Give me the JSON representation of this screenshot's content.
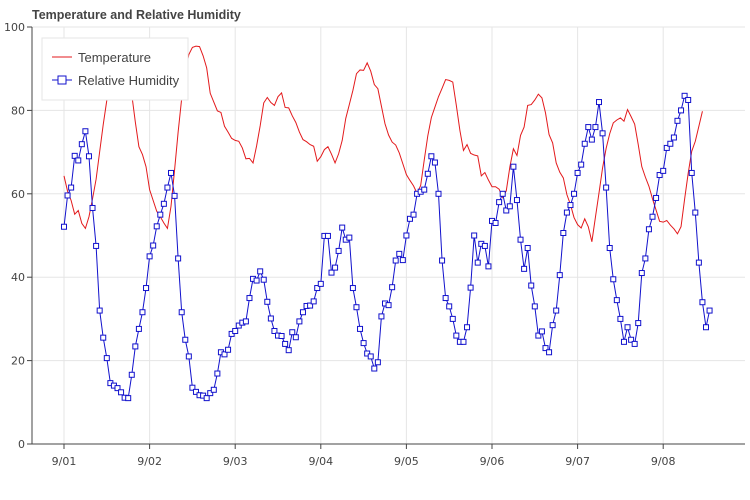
{
  "chart_data": {
    "type": "line",
    "title": "Temperature and Relative Humidity",
    "xlabel": "",
    "ylabel": "",
    "ylim": [
      0,
      100
    ],
    "yticks": [
      0,
      20,
      40,
      60,
      80,
      100
    ],
    "xlim": [
      "2025-09-01 00:00",
      "2025-09-08 23:00"
    ],
    "xticks": [
      "9/01",
      "9/02",
      "9/03",
      "9/04",
      "9/05",
      "9/06",
      "9/07",
      "9/08"
    ],
    "grid": true,
    "legend_position": "top-left",
    "x_start": "9/01 00:00",
    "x_step_hours": 1,
    "series": [
      {
        "name": "Temperature",
        "color": "#e31a1c",
        "marker": "none",
        "values": [
          64.3,
          60.6,
          58.4,
          55.1,
          56.0,
          52.9,
          51.7,
          54.5,
          58.8,
          63.5,
          70.1,
          76.6,
          82.4,
          87.0,
          89.8,
          91.2,
          91.3,
          90.5,
          88.3,
          83.8,
          77.2,
          71.3,
          69.4,
          66.5,
          61.0,
          58.4,
          55.8,
          54.5,
          53.0,
          51.7,
          57.0,
          65.7,
          74.8,
          82.9,
          89.1,
          93.4,
          95.1,
          95.4,
          95.3,
          93.1,
          90.2,
          84.1,
          82.0,
          79.9,
          79.5,
          76.2,
          74.8,
          73.3,
          72.8,
          72.6,
          71.0,
          68.4,
          68.5,
          67.4,
          71.5,
          76.3,
          81.8,
          83.1,
          81.9,
          81.2,
          83.3,
          84.2,
          80.7,
          80.6,
          78.7,
          77.1,
          74.8,
          73.0,
          72.5,
          71.8,
          71.4,
          67.8,
          68.9,
          70.6,
          71.3,
          69.5,
          67.4,
          69.6,
          72.8,
          78.1,
          81.4,
          84.8,
          88.8,
          89.7,
          89.6,
          91.4,
          89.4,
          86.2,
          85.2,
          81.0,
          76.8,
          74.1,
          72.4,
          71.7,
          69.8,
          67.2,
          64.6,
          63.2,
          61.9,
          60.1,
          62.0,
          68.1,
          73.9,
          78.3,
          80.8,
          83.3,
          85.3,
          87.4,
          87.2,
          86.8,
          81.2,
          75.2,
          70.4,
          71.8,
          69.7,
          69.3,
          69.1,
          64.3,
          65.1,
          63.3,
          61.7,
          61.7,
          61.1,
          59.1,
          60.7,
          66.4,
          70.8,
          69.2,
          74.0,
          76.0,
          81.2,
          81.4,
          82.5,
          83.9,
          83.0,
          79.4,
          74.2,
          72.2,
          67.4,
          65.2,
          63.8,
          59.8,
          57.4,
          54.3,
          52.6,
          51.8,
          54.0,
          52.1,
          48.5,
          54.4,
          60.2,
          66.2,
          70.9,
          74.4,
          77.0,
          77.7,
          78.2,
          77.4,
          80.2,
          78.5,
          76.7,
          71.8,
          66.5,
          64.0,
          61.8,
          58.8,
          56.1,
          53.4,
          53.2,
          53.6,
          52.5,
          51.6,
          50.4,
          52.1,
          58.7,
          64.9,
          70.2,
          72.6,
          76.2,
          79.8
        ]
      },
      {
        "name": "Relative Humidity",
        "color": "#1111cc",
        "marker": "square",
        "values": [
          52.1,
          59.6,
          61.5,
          69.1,
          68.0,
          71.9,
          75.0,
          69.0,
          56.6,
          47.5,
          32.0,
          25.5,
          20.6,
          14.6,
          14.0,
          13.4,
          12.4,
          11.1,
          11.0,
          16.6,
          23.4,
          27.6,
          31.6,
          37.4,
          45.0,
          47.6,
          52.2,
          55.0,
          57.6,
          61.5,
          65.0,
          59.5,
          44.5,
          31.6,
          25.0,
          21.0,
          13.5,
          12.5,
          11.7,
          11.6,
          11.0,
          12.2,
          13.0,
          16.9,
          22.0,
          21.5,
          22.6,
          26.4,
          27.1,
          28.4,
          29.1,
          29.4,
          35.0,
          39.6,
          39.2,
          41.4,
          39.4,
          34.1,
          30.1,
          27.1,
          26.0,
          25.9,
          24.0,
          22.5,
          26.8,
          25.6,
          29.4,
          31.6,
          33.1,
          33.2,
          34.2,
          37.4,
          38.4,
          49.9,
          49.9,
          41.1,
          42.3,
          46.3,
          51.9,
          49.0,
          49.5,
          37.4,
          32.8,
          27.6,
          24.2,
          21.7,
          21.0,
          18.1,
          19.6,
          30.6,
          33.7,
          33.3,
          37.6,
          44.0,
          45.6,
          44.1,
          50.0,
          54.0,
          55.0,
          60.0,
          60.5,
          61.0,
          64.8,
          69.0,
          67.5,
          60.0,
          44.0,
          35.0,
          33.0,
          30.0,
          26.0,
          24.5,
          24.5,
          28.0,
          37.5,
          50.0,
          43.5,
          48.0,
          47.5,
          42.6,
          53.5,
          53.0,
          58.0,
          60.0,
          56.0,
          57.0,
          66.5,
          58.5,
          49.0,
          42.0,
          47.0,
          38.0,
          33.0,
          26.0,
          27.0,
          23.0,
          22.0,
          28.5,
          32.0,
          40.5,
          50.6,
          55.5,
          57.3,
          60.0,
          65.0,
          67.0,
          72.0,
          76.0,
          73.0,
          76.0,
          82.0,
          74.5,
          61.5,
          47.0,
          39.5,
          34.5,
          30.0,
          24.5,
          28.0,
          25.0,
          24.0,
          29.0,
          41.0,
          44.5,
          51.5,
          54.5,
          59.0,
          64.5,
          65.5,
          71.0,
          72.0,
          73.5,
          77.5,
          80.0,
          83.5,
          82.5,
          65.0,
          55.5,
          43.5,
          34.0,
          28.0,
          32.0
        ]
      }
    ]
  }
}
